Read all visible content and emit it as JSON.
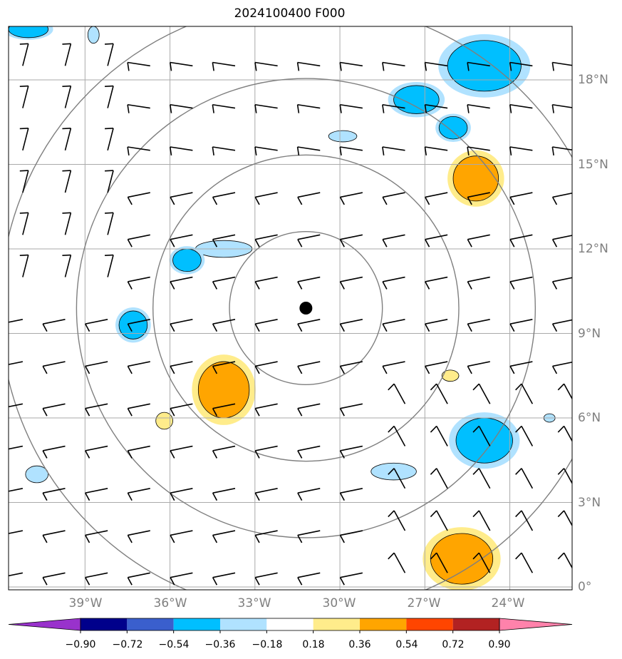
{
  "title": "2024100400 F000",
  "lon_labels": [
    "39°W",
    "36°W",
    "33°W",
    "30°W",
    "27°W",
    "24°W"
  ],
  "lat_labels": [
    "18°N",
    "15°N",
    "12°N",
    "9°N",
    "6°N",
    "3°N",
    "0°"
  ],
  "colorbar": {
    "tick_labels": [
      "−0.90",
      "−0.72",
      "−0.54",
      "−0.36",
      "−0.18",
      "0.18",
      "0.36",
      "0.54",
      "0.72",
      "0.90"
    ],
    "colors": [
      "#9932cc",
      "#00008b",
      "#3a5fcd",
      "#00bfff",
      "#b0e2ff",
      "#ffffff",
      "#ffec8b",
      "#ffa500",
      "#ff4500",
      "#b22222",
      "#ff82ab"
    ]
  },
  "map": {
    "extent": {
      "lon_min": -41.7,
      "lon_max": -21.8,
      "lat_min": -0.1,
      "lat_max": 19.9
    },
    "center": {
      "lon": -31.2,
      "lat": 9.9
    },
    "range_rings_deg": [
      2.7,
      5.4,
      8.1,
      10.8
    ],
    "grid_color": "#aaaaaa",
    "ring_color": "#7f7f7f",
    "colors": {
      "light_blue": "#b0e2ff",
      "blue": "#00bfff",
      "yellow": "#ffec8b",
      "orange": "#ffa500"
    },
    "wind_grid": {
      "lon_start": -41.2,
      "lon_step": 1.5,
      "lat_start": 0.5,
      "lat_step": 1.5,
      "cols": 14,
      "rows": 13
    }
  },
  "shaded_areas": [
    {
      "lon": -24.9,
      "lat": 18.5,
      "rx": 1.3,
      "ry": 0.9,
      "color": "blue"
    },
    {
      "lon": -27.3,
      "lat": 17.3,
      "rx": 0.8,
      "ry": 0.5,
      "color": "blue"
    },
    {
      "lon": -26.0,
      "lat": 16.3,
      "rx": 0.5,
      "ry": 0.4,
      "color": "blue"
    },
    {
      "lon": -29.9,
      "lat": 16.0,
      "rx": 0.5,
      "ry": 0.2,
      "color": "light_blue"
    },
    {
      "lon": -25.2,
      "lat": 14.5,
      "rx": 0.8,
      "ry": 0.8,
      "color": "orange"
    },
    {
      "lon": -34.1,
      "lat": 12.0,
      "rx": 1.0,
      "ry": 0.3,
      "color": "light_blue"
    },
    {
      "lon": -35.4,
      "lat": 11.6,
      "rx": 0.5,
      "ry": 0.4,
      "color": "blue"
    },
    {
      "lon": -37.3,
      "lat": 9.3,
      "rx": 0.5,
      "ry": 0.5,
      "color": "blue"
    },
    {
      "lon": -34.1,
      "lat": 7.0,
      "rx": 0.9,
      "ry": 1.0,
      "color": "orange"
    },
    {
      "lon": -36.2,
      "lat": 5.9,
      "rx": 0.3,
      "ry": 0.3,
      "color": "yellow"
    },
    {
      "lon": -26.1,
      "lat": 7.5,
      "rx": 0.3,
      "ry": 0.2,
      "color": "yellow"
    },
    {
      "lon": -24.9,
      "lat": 5.2,
      "rx": 1.0,
      "ry": 0.8,
      "color": "blue"
    },
    {
      "lon": -22.6,
      "lat": 6.0,
      "rx": 0.2,
      "ry": 0.15,
      "color": "light_blue"
    },
    {
      "lon": -28.1,
      "lat": 4.1,
      "rx": 0.8,
      "ry": 0.3,
      "color": "light_blue"
    },
    {
      "lon": -40.7,
      "lat": 4.0,
      "rx": 0.4,
      "ry": 0.3,
      "color": "light_blue"
    },
    {
      "lon": -25.7,
      "lat": 1.0,
      "rx": 1.1,
      "ry": 0.9,
      "color": "orange"
    },
    {
      "lon": -41.0,
      "lat": 19.8,
      "rx": 0.7,
      "ry": 0.3,
      "color": "blue"
    },
    {
      "lon": -38.7,
      "lat": 19.6,
      "rx": 0.2,
      "ry": 0.3,
      "color": "light_blue"
    }
  ]
}
